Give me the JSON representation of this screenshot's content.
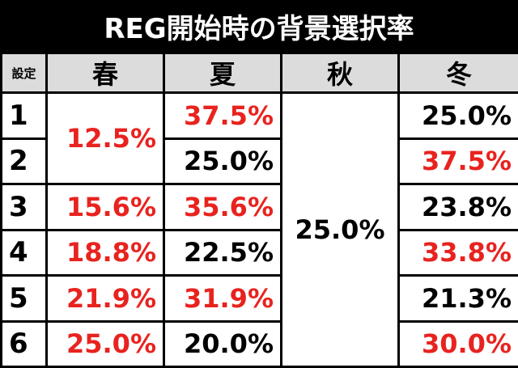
{
  "title": "REG開始時の背景選択率",
  "table": {
    "header": [
      "設定",
      "春",
      "夏",
      "秋",
      "冬"
    ],
    "rows": [
      [
        {
          "text": "1"
        },
        {
          "text": "12.5%",
          "color": "#e8231f"
        },
        {
          "text": "37.5%",
          "color": "#e8231f"
        },
        {
          "text": "25.0%",
          "color": "#000000"
        },
        {
          "text": "25.0%",
          "color": "#000000"
        }
      ],
      [
        {
          "text": "2"
        },
        {
          "text": "25.0%",
          "color": "#000000"
        },
        {
          "text": "37.5%",
          "color": "#e8231f"
        }
      ],
      [
        {
          "text": "3"
        },
        {
          "text": "15.6%",
          "color": "#e8231f"
        },
        {
          "text": "35.6%",
          "color": "#e8231f"
        },
        {
          "text": "23.8%",
          "color": "#000000"
        }
      ],
      [
        {
          "text": "4"
        },
        {
          "text": "18.8%",
          "color": "#e8231f"
        },
        {
          "text": "22.5%",
          "color": "#000000"
        },
        {
          "text": "33.8%",
          "color": "#e8231f"
        }
      ],
      [
        {
          "text": "5"
        },
        {
          "text": "21.9%",
          "color": "#e8231f"
        },
        {
          "text": "31.9%",
          "color": "#e8231f"
        },
        {
          "text": "21.3%",
          "color": "#000000"
        }
      ],
      [
        {
          "text": "6"
        },
        {
          "text": "25.0%",
          "color": "#e8231f"
        },
        {
          "text": "20.0%",
          "color": "#000000"
        },
        {
          "text": "30.0%",
          "color": "#e8231f"
        }
      ]
    ]
  }
}
